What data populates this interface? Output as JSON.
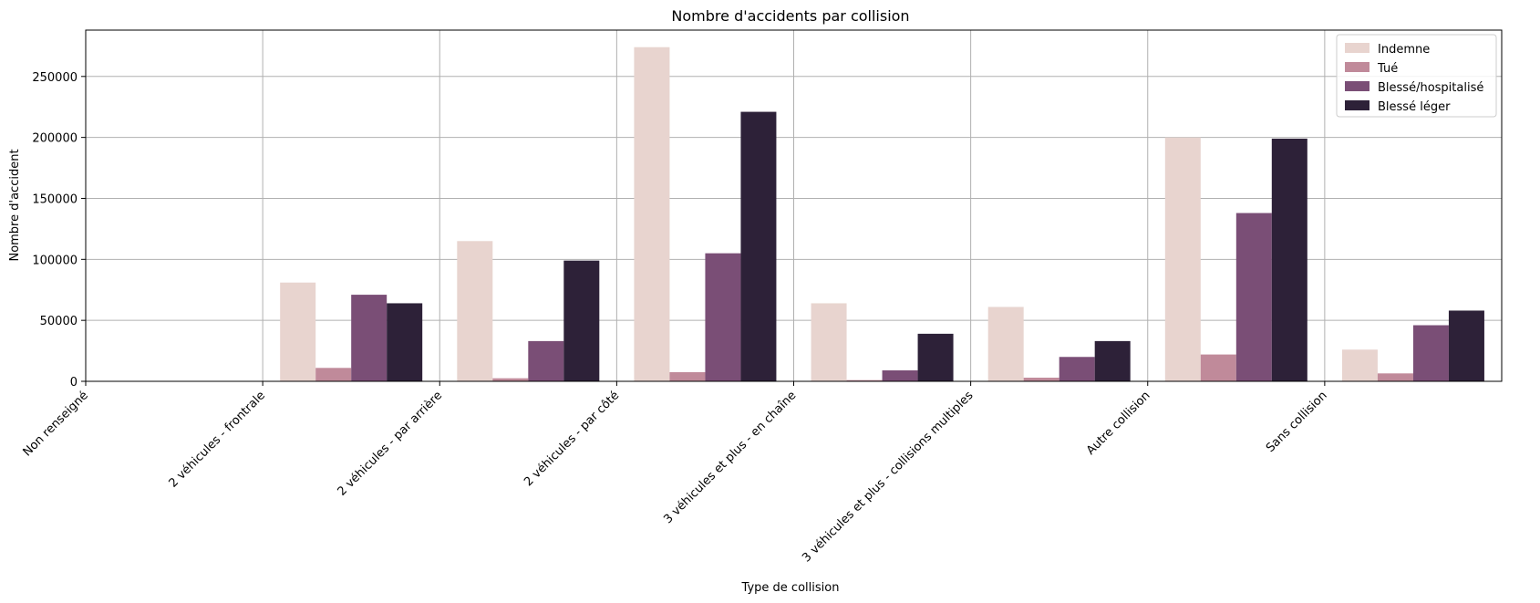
{
  "chart_data": {
    "type": "bar",
    "title": "Nombre d'accidents par collision",
    "xlabel": "Type de collision",
    "ylabel": "Nombre d'accident",
    "ylim": [
      0,
      288000
    ],
    "yticks": [
      0,
      50000,
      100000,
      150000,
      200000,
      250000
    ],
    "grid": true,
    "legend_position": "top-right",
    "tick_labels": [
      "Non renseigné",
      "2 véhicules - frontrale",
      "2 véhicules - par arrière",
      "2 véhicules - par côté",
      "3 véhicules et plus - en chaîne",
      "3 véhicules et plus - collisions multiples",
      "Autre collision",
      "Sans collision"
    ],
    "groups": 8,
    "series": [
      {
        "name": "Indemne",
        "color": "#e8d4cf",
        "values": [
          0,
          81000,
          115000,
          274000,
          64000,
          61000,
          200000,
          26000
        ]
      },
      {
        "name": "Tué",
        "color": "#c08a9a",
        "values": [
          0,
          11000,
          2500,
          7500,
          1000,
          3000,
          22000,
          6500
        ]
      },
      {
        "name": "Blessé/hospitalisé",
        "color": "#7a4e76",
        "values": [
          0,
          71000,
          33000,
          105000,
          9000,
          20000,
          138000,
          46000
        ]
      },
      {
        "name": "Blessé léger",
        "color": "#2d2138",
        "values": [
          0,
          64000,
          99000,
          221000,
          39000,
          33000,
          199000,
          58000
        ]
      }
    ]
  }
}
